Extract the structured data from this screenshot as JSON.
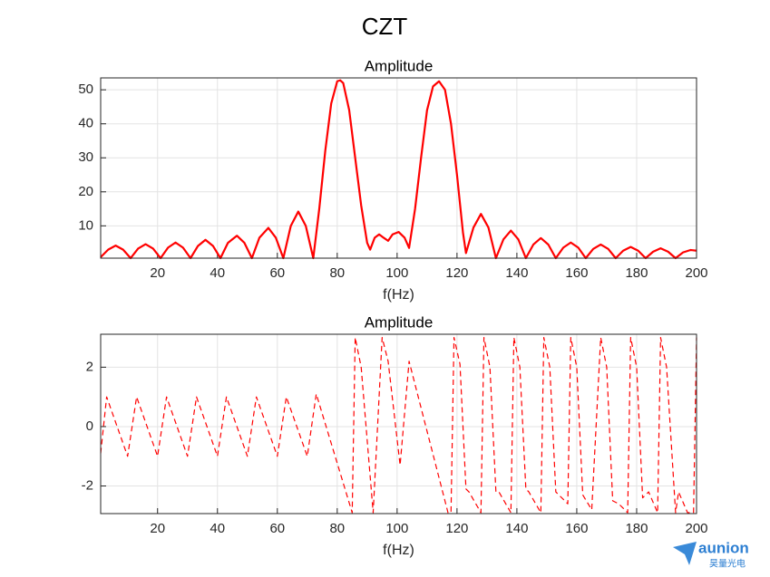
{
  "figure_title": "CZT",
  "watermark": {
    "text": "aunion",
    "subtext": "昊量光电"
  },
  "chart_data": [
    {
      "type": "line",
      "title": "Amplitude",
      "xlabel": "f(Hz)",
      "xlim": [
        1,
        200
      ],
      "xticks": [
        20,
        40,
        60,
        80,
        100,
        120,
        140,
        160,
        180,
        200
      ],
      "ylim": [
        0.5,
        53.5
      ],
      "yticks": [
        10,
        20,
        30,
        40,
        50
      ],
      "grid": true,
      "color": "#ff0000",
      "line_style": "solid",
      "x": [
        1,
        3.5,
        6,
        8.5,
        11,
        13.5,
        16,
        18.5,
        21,
        23.5,
        26,
        28.5,
        31,
        33.5,
        36,
        38.5,
        41,
        43.5,
        46.5,
        49,
        51.5,
        54,
        57,
        59.5,
        62,
        64.5,
        67,
        69.5,
        72,
        74,
        76,
        78,
        80,
        81,
        82,
        84,
        86,
        88,
        90,
        91,
        92.5,
        94,
        95.5,
        97,
        98.5,
        100.5,
        102.5,
        104,
        106,
        108,
        110,
        112,
        114,
        116,
        118,
        120,
        122,
        123,
        125.5,
        128,
        130.5,
        133,
        135.5,
        138,
        140.5,
        143,
        145.5,
        148,
        150.5,
        153,
        155.5,
        158,
        160.5,
        163,
        165.5,
        168,
        170.5,
        173,
        175.5,
        178,
        180.5,
        183,
        185.5,
        188,
        190.5,
        193,
        195.5,
        198,
        200
      ],
      "values": [
        0.8,
        3,
        4.2,
        3,
        0.5,
        3.3,
        4.6,
        3.3,
        0.5,
        3.6,
        5.1,
        3.6,
        0.5,
        4.1,
        5.9,
        4.1,
        0.5,
        5,
        7.1,
        5,
        0.5,
        6.5,
        9.4,
        6.5,
        0.5,
        10,
        14.2,
        10,
        0.5,
        15,
        32,
        46,
        52.5,
        52.8,
        52,
        44,
        30,
        16,
        5,
        3,
        6.5,
        7.5,
        6.5,
        5.6,
        7.5,
        8.2,
        6.5,
        3.5,
        15,
        30,
        44,
        51,
        52.5,
        50,
        40,
        25,
        8,
        2,
        9.5,
        13.5,
        9.5,
        0.5,
        6,
        8.6,
        6,
        0.5,
        4.5,
        6.4,
        4.5,
        0.5,
        3.6,
        5.1,
        3.6,
        0.5,
        3.2,
        4.5,
        3.2,
        0.5,
        2.7,
        3.8,
        2.7,
        0.5,
        2.4,
        3.4,
        2.4,
        0.5,
        2.2,
        2.9,
        2.7
      ]
    },
    {
      "type": "line",
      "title": "Amplitude",
      "xlabel": "f(Hz)",
      "xlim": [
        1,
        200
      ],
      "xticks": [
        20,
        40,
        60,
        80,
        100,
        120,
        140,
        160,
        180,
        200
      ],
      "ylim": [
        -2.93,
        3.11
      ],
      "yticks": [
        -2,
        0,
        2
      ],
      "grid": true,
      "color": "#ff0000",
      "line_style": "dashed",
      "x": [
        1,
        3,
        10,
        13,
        20,
        23,
        30,
        33,
        40,
        43,
        50,
        53,
        60,
        63,
        70,
        73,
        85,
        86,
        88,
        92,
        95,
        97,
        101,
        104,
        117,
        118,
        119,
        121,
        123,
        124,
        128,
        129,
        131,
        133,
        134,
        138,
        139,
        141,
        143,
        144,
        148,
        149,
        151,
        153,
        157,
        158,
        160,
        162,
        165,
        168,
        170,
        172,
        174,
        177,
        178,
        180,
        182,
        184,
        187,
        188,
        190,
        193,
        194,
        197,
        199,
        200
      ],
      "values": [
        -0.9,
        1.0,
        -1.0,
        1.0,
        -1.0,
        1.0,
        -1.0,
        1.0,
        -1.0,
        1.0,
        -1.0,
        1.0,
        -1.0,
        1.0,
        -1.0,
        1.1,
        -2.9,
        3.0,
        2.0,
        -2.9,
        3.0,
        2.2,
        -1.3,
        2.2,
        -2.9,
        -2.9,
        3.0,
        2.1,
        -2.1,
        -2.2,
        -2.9,
        3.0,
        2.0,
        -2.2,
        -2.2,
        -2.9,
        3.0,
        2.0,
        -2.1,
        -2.2,
        -2.9,
        3.0,
        2.0,
        -2.2,
        -2.6,
        3.0,
        2.0,
        -2.3,
        -2.8,
        3.0,
        2.0,
        -2.5,
        -2.6,
        -2.9,
        3.0,
        2.0,
        -2.4,
        -2.2,
        -2.9,
        3.0,
        2.0,
        -2.9,
        -2.2,
        -2.9,
        -2.9,
        3.0
      ]
    }
  ]
}
